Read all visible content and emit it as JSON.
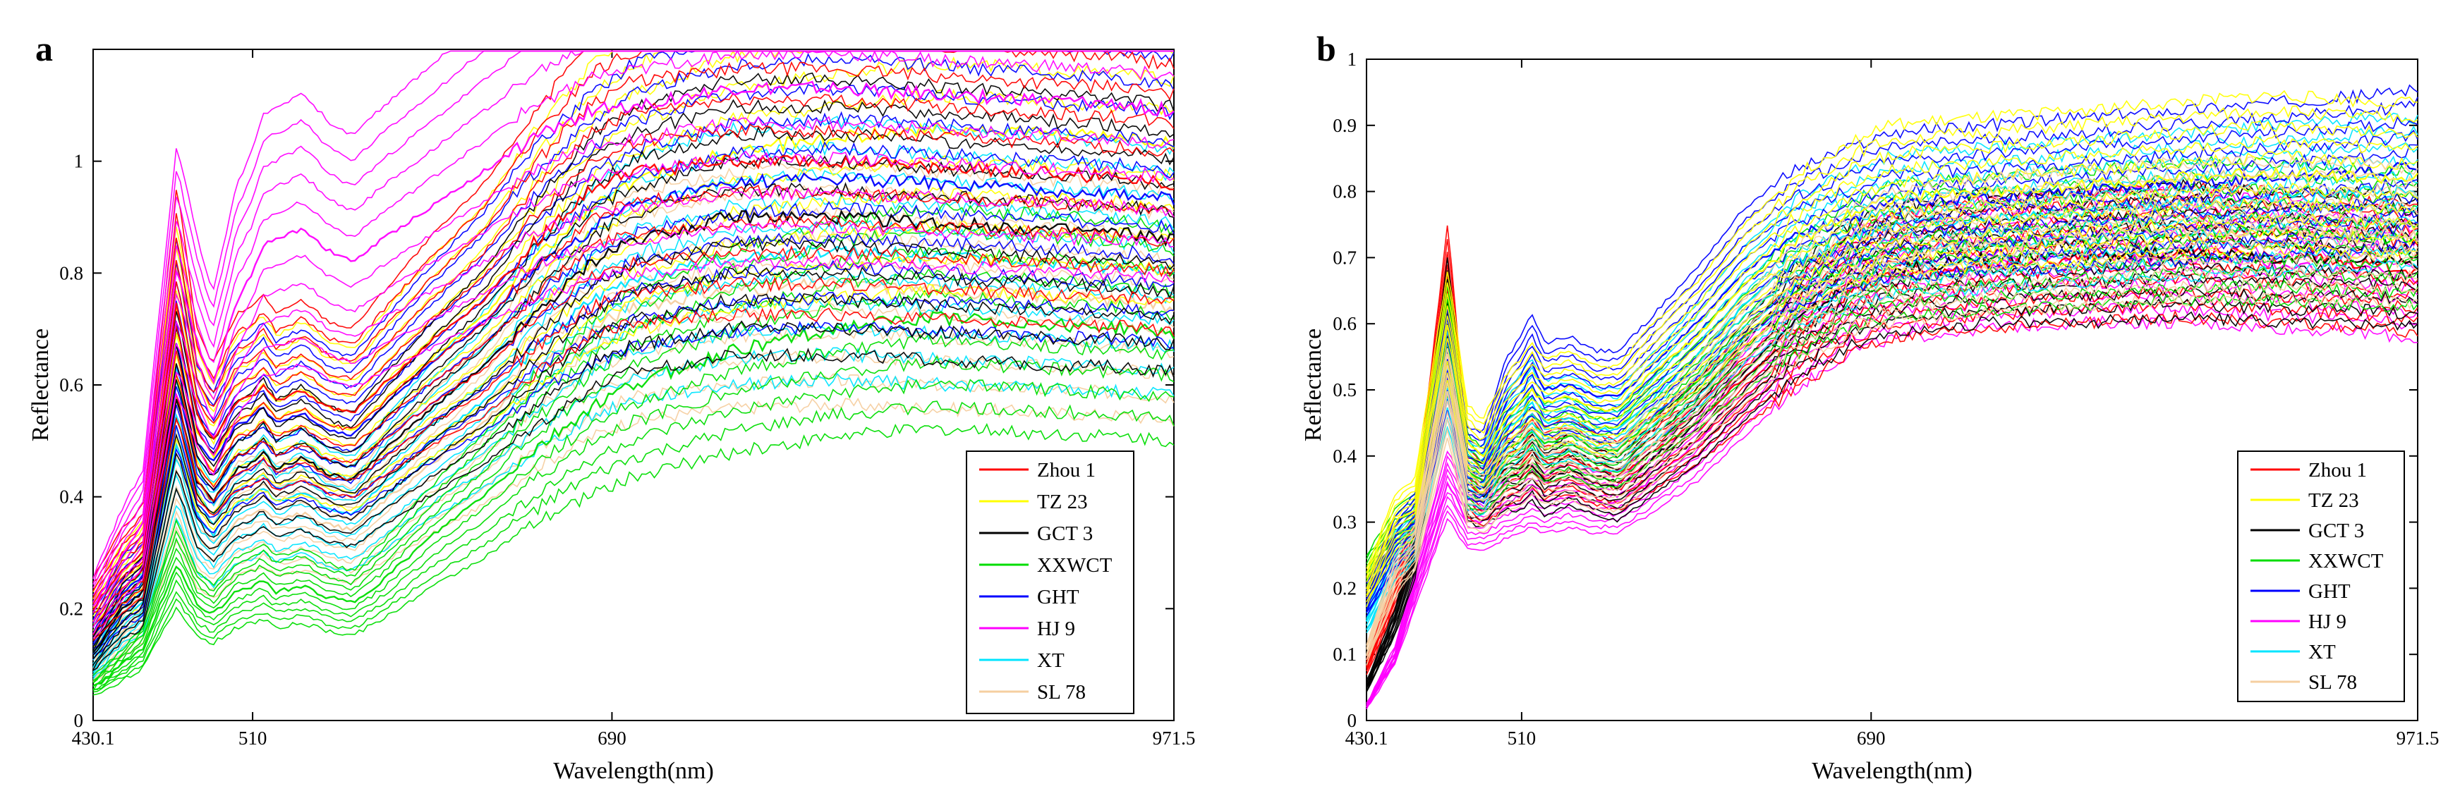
{
  "figure": {
    "colors": {
      "Zhou 1": "#ff0000",
      "TZ 23": "#ffff00",
      "GCT 3": "#000000",
      "XXWCT": "#00dd00",
      "GHT": "#0000ff",
      "HJ 9": "#ff00ff",
      "XT": "#00e5ff",
      "SL 78": "#f5cfa0"
    }
  },
  "chart_data": [
    {
      "panel": "a",
      "type": "line",
      "title": "",
      "xlabel": "Wavelength(nm)",
      "ylabel": "Reflectance",
      "xlim": [
        430.1,
        971.5
      ],
      "ylim": [
        0,
        1.2
      ],
      "xticks": [
        430.1,
        510,
        690,
        971.5
      ],
      "yticks": [
        0,
        0.2,
        0.4,
        0.6,
        0.8,
        1
      ],
      "ytick_labels": [
        "0",
        "0.2",
        "0.4",
        "0.6",
        "0.8",
        "1"
      ],
      "grid": false,
      "legend_position": "bottom-right",
      "x": [
        430,
        445,
        455,
        472,
        482,
        490,
        502,
        510,
        515,
        522,
        535,
        548,
        560,
        575,
        600,
        625,
        650,
        680,
        700,
        750,
        800,
        850,
        900,
        950,
        971.5
      ],
      "series": [
        {
          "name": "Zhou 1",
          "values": [
            0.2,
            0.27,
            0.3,
            0.75,
            0.55,
            0.5,
            0.57,
            0.58,
            0.6,
            0.57,
            0.59,
            0.56,
            0.55,
            0.6,
            0.68,
            0.75,
            0.85,
            0.95,
            0.98,
            1.0,
            1.0,
            0.99,
            0.98,
            0.97,
            0.96
          ]
        },
        {
          "name": "TZ 23",
          "values": [
            0.18,
            0.25,
            0.28,
            0.7,
            0.52,
            0.47,
            0.54,
            0.55,
            0.57,
            0.54,
            0.56,
            0.53,
            0.52,
            0.57,
            0.65,
            0.72,
            0.82,
            0.92,
            0.96,
            1.02,
            1.04,
            1.06,
            1.05,
            1.04,
            1.03
          ]
        },
        {
          "name": "GCT 3",
          "values": [
            0.12,
            0.2,
            0.23,
            0.58,
            0.43,
            0.39,
            0.45,
            0.46,
            0.48,
            0.45,
            0.47,
            0.44,
            0.43,
            0.48,
            0.56,
            0.63,
            0.72,
            0.82,
            0.86,
            0.9,
            0.9,
            0.89,
            0.88,
            0.87,
            0.86
          ]
        },
        {
          "name": "XXWCT",
          "values": [
            0.06,
            0.1,
            0.13,
            0.28,
            0.21,
            0.19,
            0.23,
            0.24,
            0.25,
            0.23,
            0.24,
            0.22,
            0.21,
            0.25,
            0.33,
            0.4,
            0.48,
            0.56,
            0.6,
            0.66,
            0.7,
            0.72,
            0.71,
            0.7,
            0.69
          ]
        },
        {
          "name": "GHT",
          "values": [
            0.15,
            0.23,
            0.26,
            0.68,
            0.5,
            0.46,
            0.53,
            0.54,
            0.56,
            0.53,
            0.55,
            0.52,
            0.51,
            0.56,
            0.64,
            0.71,
            0.8,
            0.88,
            0.92,
            0.96,
            0.97,
            0.96,
            0.95,
            0.94,
            0.93
          ]
        },
        {
          "name": "HJ 9",
          "values": [
            0.2,
            0.3,
            0.35,
            0.81,
            0.68,
            0.6,
            0.75,
            0.8,
            0.85,
            0.86,
            0.88,
            0.84,
            0.82,
            0.86,
            0.92,
            0.98,
            1.04,
            1.09,
            1.1,
            1.13,
            1.13,
            1.12,
            1.11,
            1.1,
            1.09
          ]
        },
        {
          "name": "XT",
          "values": [
            0.1,
            0.18,
            0.21,
            0.5,
            0.37,
            0.33,
            0.39,
            0.4,
            0.42,
            0.39,
            0.41,
            0.38,
            0.37,
            0.42,
            0.5,
            0.57,
            0.66,
            0.75,
            0.79,
            0.83,
            0.84,
            0.83,
            0.82,
            0.81,
            0.8
          ]
        },
        {
          "name": "SL 78",
          "values": [
            0.09,
            0.16,
            0.19,
            0.45,
            0.33,
            0.3,
            0.36,
            0.37,
            0.38,
            0.36,
            0.37,
            0.35,
            0.34,
            0.39,
            0.46,
            0.53,
            0.62,
            0.7,
            0.74,
            0.77,
            0.78,
            0.77,
            0.76,
            0.75,
            0.74
          ]
        }
      ]
    },
    {
      "panel": "b",
      "type": "line",
      "title": "",
      "xlabel": "Wavelength(nm)",
      "ylabel": "Reflectance",
      "xlim": [
        430.1,
        971.5
      ],
      "ylim": [
        0,
        1
      ],
      "xticks": [
        430.1,
        510,
        690,
        971.5
      ],
      "yticks": [
        0,
        0.1,
        0.2,
        0.3,
        0.4,
        0.5,
        0.6,
        0.7,
        0.8,
        0.9,
        1
      ],
      "ytick_labels": [
        "0",
        "0.1",
        "0.2",
        "0.3",
        "0.4",
        "0.5",
        "0.6",
        "0.7",
        "0.8",
        "0.9",
        "1"
      ],
      "grid": false,
      "legend_position": "bottom-right",
      "x": [
        430,
        445,
        455,
        472,
        482,
        490,
        502,
        510,
        515,
        522,
        535,
        548,
        560,
        575,
        600,
        625,
        650,
        680,
        700,
        750,
        800,
        850,
        900,
        950,
        971.5
      ],
      "series": [
        {
          "name": "Zhou 1",
          "values": [
            0.08,
            0.2,
            0.28,
            0.66,
            0.36,
            0.34,
            0.38,
            0.39,
            0.41,
            0.39,
            0.4,
            0.38,
            0.37,
            0.4,
            0.45,
            0.52,
            0.58,
            0.65,
            0.67,
            0.69,
            0.7,
            0.71,
            0.7,
            0.69,
            0.68
          ]
        },
        {
          "name": "TZ 23",
          "values": [
            0.2,
            0.3,
            0.32,
            0.6,
            0.42,
            0.4,
            0.46,
            0.48,
            0.5,
            0.48,
            0.49,
            0.47,
            0.47,
            0.52,
            0.58,
            0.66,
            0.72,
            0.77,
            0.79,
            0.8,
            0.81,
            0.82,
            0.83,
            0.82,
            0.82
          ]
        },
        {
          "name": "GCT 3",
          "values": [
            0.05,
            0.15,
            0.25,
            0.62,
            0.35,
            0.34,
            0.37,
            0.37,
            0.39,
            0.36,
            0.38,
            0.36,
            0.35,
            0.39,
            0.45,
            0.53,
            0.6,
            0.66,
            0.68,
            0.7,
            0.7,
            0.71,
            0.7,
            0.7,
            0.69
          ]
        },
        {
          "name": "XXWCT",
          "values": [
            0.22,
            0.28,
            0.3,
            0.58,
            0.38,
            0.36,
            0.41,
            0.42,
            0.44,
            0.42,
            0.43,
            0.41,
            0.41,
            0.45,
            0.51,
            0.58,
            0.64,
            0.69,
            0.71,
            0.72,
            0.73,
            0.74,
            0.74,
            0.73,
            0.73
          ]
        },
        {
          "name": "GHT",
          "values": [
            0.18,
            0.27,
            0.3,
            0.55,
            0.39,
            0.38,
            0.48,
            0.51,
            0.54,
            0.5,
            0.51,
            0.49,
            0.49,
            0.53,
            0.6,
            0.68,
            0.73,
            0.76,
            0.78,
            0.79,
            0.8,
            0.81,
            0.82,
            0.83,
            0.84
          ]
        },
        {
          "name": "HJ 9",
          "values": [
            0.02,
            0.1,
            0.2,
            0.36,
            0.3,
            0.3,
            0.32,
            0.33,
            0.34,
            0.33,
            0.34,
            0.33,
            0.33,
            0.36,
            0.42,
            0.5,
            0.58,
            0.65,
            0.67,
            0.69,
            0.7,
            0.7,
            0.69,
            0.68,
            0.67
          ]
        },
        {
          "name": "XT",
          "values": [
            0.15,
            0.25,
            0.28,
            0.52,
            0.37,
            0.36,
            0.44,
            0.46,
            0.48,
            0.45,
            0.46,
            0.44,
            0.44,
            0.48,
            0.55,
            0.63,
            0.69,
            0.73,
            0.75,
            0.76,
            0.77,
            0.78,
            0.79,
            0.8,
            0.8
          ]
        },
        {
          "name": "SL 78",
          "values": [
            0.1,
            0.22,
            0.26,
            0.5,
            0.34,
            0.33,
            0.37,
            0.38,
            0.4,
            0.38,
            0.39,
            0.37,
            0.37,
            0.41,
            0.48,
            0.56,
            0.63,
            0.68,
            0.7,
            0.72,
            0.73,
            0.74,
            0.74,
            0.74,
            0.73
          ]
        }
      ]
    }
  ]
}
